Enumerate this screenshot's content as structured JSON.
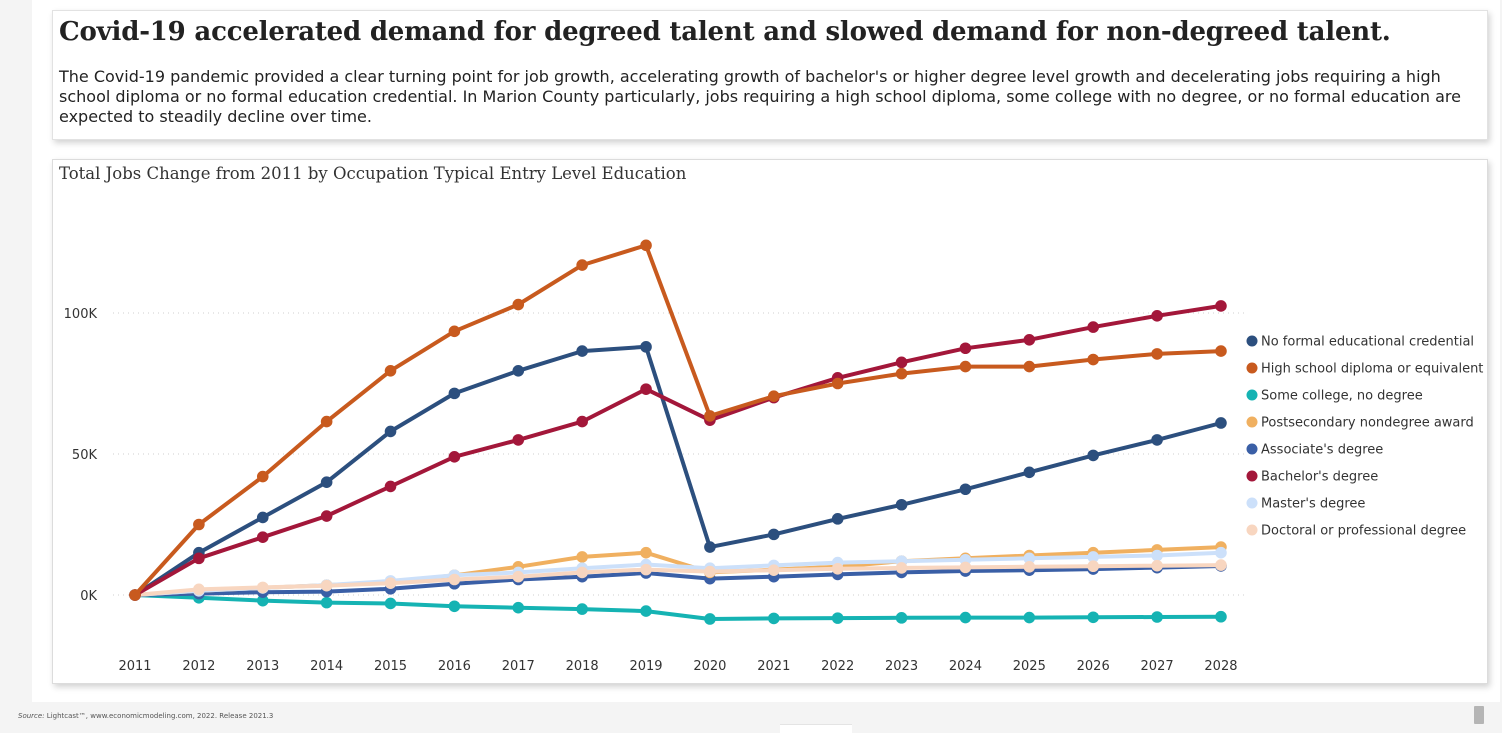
{
  "header": {
    "headline": "Covid-19 accelerated demand for degreed talent and slowed demand for non-degreed talent.",
    "description": "The Covid-19 pandemic provided a clear turning point for job growth, accelerating growth of bachelor's or higher degree level growth and decelerating jobs requiring a high school diploma or no formal education credential. In Marion County particularly, jobs requiring a high school diploma, some college with no degree, or no formal education are expected to steadily decline over time."
  },
  "footer": {
    "source_label": "Source:",
    "source_text": "Lightcast™, www.economicmodeling.com, 2022. Release 2021.3"
  },
  "chart_data": {
    "type": "line",
    "title": "Total Jobs Change from 2011 by Occupation Typical Entry Level Education",
    "xlabel": "",
    "ylabel": "",
    "ylim": [
      -20000,
      135000
    ],
    "yticks": [
      0,
      50000,
      100000
    ],
    "ytick_labels": [
      "0K",
      "50K",
      "100K"
    ],
    "grid": true,
    "legend_position": "right",
    "x": [
      "2011",
      "2012",
      "2013",
      "2014",
      "2015",
      "2016",
      "2017",
      "2018",
      "2019",
      "2020",
      "2021",
      "2022",
      "2023",
      "2024",
      "2025",
      "2026",
      "2027",
      "2028"
    ],
    "series": [
      {
        "name": "No formal educational credential",
        "color": "#2c4f7e",
        "values": [
          0,
          15000,
          27500,
          40000,
          58000,
          71500,
          79500,
          86500,
          88000,
          17000,
          21500,
          27000,
          32000,
          37500,
          43500,
          49500,
          55000,
          61000
        ]
      },
      {
        "name": "High school diploma or equivalent",
        "color": "#c85a1e",
        "values": [
          0,
          25000,
          42000,
          61500,
          79500,
          93500,
          103000,
          117000,
          124000,
          63500,
          70500,
          75000,
          78500,
          81000,
          81000,
          83500,
          85500,
          86500
        ]
      },
      {
        "name": "Some college, no degree",
        "color": "#15b3b3",
        "values": [
          0,
          -1000,
          -2000,
          -2700,
          -3000,
          -4000,
          -4500,
          -5000,
          -5700,
          -8500,
          -8300,
          -8200,
          -8100,
          -8000,
          -8000,
          -7900,
          -7800,
          -7700
        ]
      },
      {
        "name": "Postsecondary nondegree award",
        "color": "#f0b060",
        "values": [
          0,
          1500,
          2500,
          3500,
          4500,
          7000,
          10000,
          13500,
          15000,
          8000,
          9000,
          10000,
          12000,
          13000,
          14000,
          15000,
          16000,
          17000
        ]
      },
      {
        "name": "Associate's degree",
        "color": "#3a5fa6",
        "values": [
          0,
          500,
          1000,
          1200,
          2200,
          4000,
          5500,
          6500,
          7800,
          5800,
          6500,
          7300,
          8000,
          8500,
          8800,
          9200,
          9700,
          10300
        ]
      },
      {
        "name": "Bachelor's degree",
        "color": "#a3173a",
        "values": [
          0,
          13000,
          20500,
          28000,
          38500,
          49000,
          55000,
          61500,
          73000,
          62000,
          70000,
          77000,
          82500,
          87500,
          90500,
          95000,
          99000,
          102500
        ]
      },
      {
        "name": "Master's degree",
        "color": "#cce0fa",
        "values": [
          0,
          1500,
          2500,
          3500,
          5000,
          7000,
          8000,
          9500,
          10800,
          9500,
          10500,
          11500,
          12000,
          12500,
          13000,
          13500,
          14000,
          15000
        ]
      },
      {
        "name": "Doctoral or professional degree",
        "color": "#f8d6c0",
        "values": [
          0,
          2000,
          2700,
          3300,
          4200,
          5500,
          6500,
          8000,
          9000,
          8300,
          8800,
          9300,
          9600,
          9800,
          10000,
          10200,
          10400,
          10600
        ]
      }
    ]
  }
}
